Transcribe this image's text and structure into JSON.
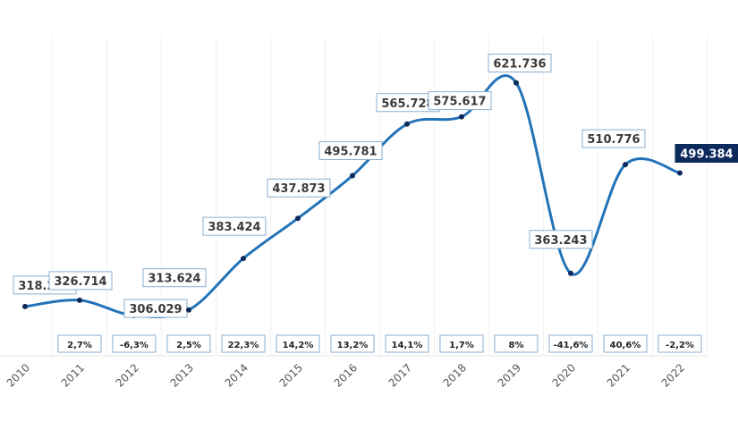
{
  "chart_data": {
    "type": "line",
    "title": "",
    "xlabel": "",
    "ylabel": "",
    "x": [
      "2010",
      "2011",
      "2012",
      "2013",
      "2014",
      "2015",
      "2016",
      "2017",
      "2018",
      "2019",
      "2020",
      "2021",
      "2022"
    ],
    "series": [
      {
        "values": [
          318.236,
          326.714,
          306.029,
          313.624,
          383.424,
          437.873,
          495.781,
          565.728,
          575.617,
          621.736,
          363.243,
          510.776,
          499.384
        ],
        "labels": [
          "318.236",
          "326.714",
          "306.029",
          "313.624",
          "383.424",
          "437.873",
          "495.781",
          "565.728",
          "575.617",
          "621.736",
          "363.243",
          "510.776",
          "499.384"
        ]
      }
    ],
    "change_labels": [
      "",
      "2,7%",
      "-6,3%",
      "2,5%",
      "22,3%",
      "14,2%",
      "13,2%",
      "14,1%",
      "1,7%",
      "8%",
      "-41,6%",
      "40,6%",
      "-2,2%"
    ],
    "ylim": [
      249,
      734
    ],
    "grid": "vertical",
    "smooth": true,
    "colors": {
      "line": "#2273b8",
      "marker": "#0d2a5c",
      "label_border": "#8aaecf",
      "highlight_bg": "#0d2a5c",
      "highlight_text": "#ffffff"
    },
    "highlight_last": true
  }
}
